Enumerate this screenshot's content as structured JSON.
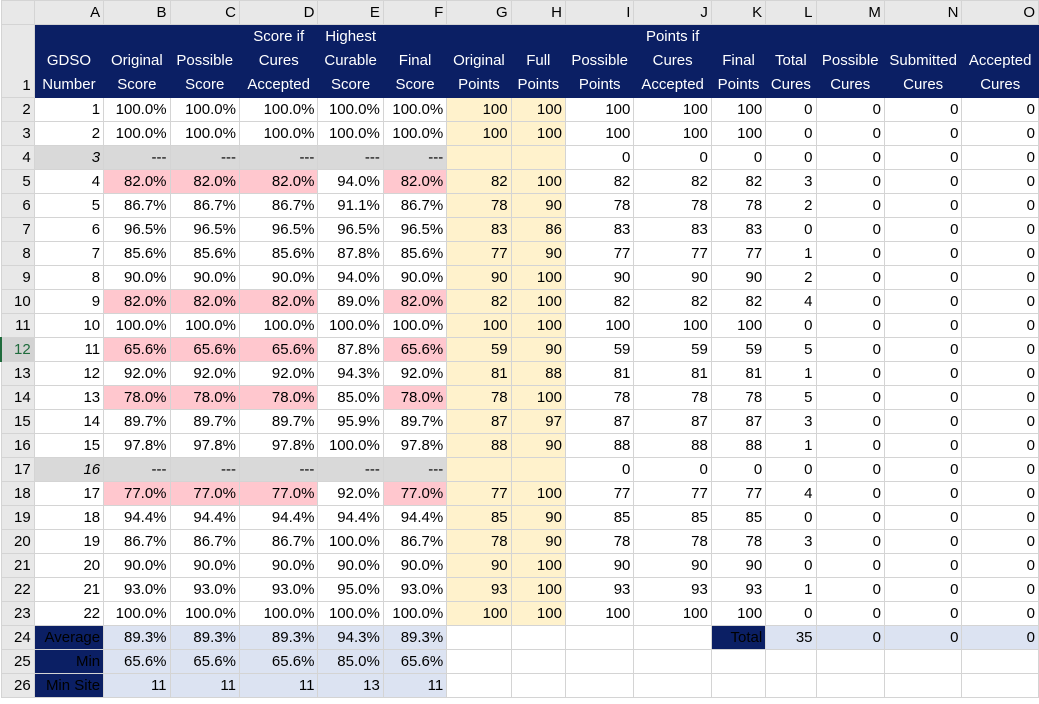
{
  "columns": [
    "A",
    "B",
    "C",
    "D",
    "E",
    "F",
    "G",
    "H",
    "I",
    "J",
    "K",
    "L",
    "M",
    "N",
    "O"
  ],
  "header_row_number": "1",
  "headers": [
    [
      "GDSO",
      "Number"
    ],
    [
      "Original",
      "Score"
    ],
    [
      "Possible",
      "Score"
    ],
    [
      "Score if",
      "Cures",
      "Accepted"
    ],
    [
      "Highest",
      "Curable",
      "Score"
    ],
    [
      "Final",
      "Score"
    ],
    [
      "Original",
      "Points"
    ],
    [
      "Full",
      "Points"
    ],
    [
      "Possible",
      "Points"
    ],
    [
      "Points if",
      "Cures",
      "Accepted"
    ],
    [
      "Final",
      "Points"
    ],
    [
      "Total",
      "Cures"
    ],
    [
      "Possible",
      "Cures"
    ],
    [
      "Submitted",
      "Cures"
    ],
    [
      "Accepted",
      "Cures"
    ]
  ],
  "rows": [
    {
      "n": "2",
      "id": "1",
      "orig": "100.0%",
      "poss": "100.0%",
      "ifc": "100.0%",
      "high": "100.0%",
      "final": "100.0%",
      "op": "100",
      "fp": "100",
      "pp": "100",
      "pic": "100",
      "finp": "100",
      "tc": "0",
      "pc": "0",
      "sc": "0",
      "ac": "0"
    },
    {
      "n": "3",
      "id": "2",
      "orig": "100.0%",
      "poss": "100.0%",
      "ifc": "100.0%",
      "high": "100.0%",
      "final": "100.0%",
      "op": "100",
      "fp": "100",
      "pp": "100",
      "pic": "100",
      "finp": "100",
      "tc": "0",
      "pc": "0",
      "sc": "0",
      "ac": "0"
    },
    {
      "n": "4",
      "id": "3",
      "skip": true,
      "orig": "---",
      "poss": "---",
      "ifc": "---",
      "high": "---",
      "final": "---",
      "op": "",
      "fp": "",
      "pp": "0",
      "pic": "0",
      "finp": "0",
      "tc": "0",
      "pc": "0",
      "sc": "0",
      "ac": "0"
    },
    {
      "n": "5",
      "id": "4",
      "red": true,
      "orig": "82.0%",
      "poss": "82.0%",
      "ifc": "82.0%",
      "high": "94.0%",
      "final": "82.0%",
      "op": "82",
      "fp": "100",
      "pp": "82",
      "pic": "82",
      "finp": "82",
      "tc": "3",
      "pc": "0",
      "sc": "0",
      "ac": "0"
    },
    {
      "n": "6",
      "id": "5",
      "orig": "86.7%",
      "poss": "86.7%",
      "ifc": "86.7%",
      "high": "91.1%",
      "final": "86.7%",
      "op": "78",
      "fp": "90",
      "pp": "78",
      "pic": "78",
      "finp": "78",
      "tc": "2",
      "pc": "0",
      "sc": "0",
      "ac": "0"
    },
    {
      "n": "7",
      "id": "6",
      "orig": "96.5%",
      "poss": "96.5%",
      "ifc": "96.5%",
      "high": "96.5%",
      "final": "96.5%",
      "op": "83",
      "fp": "86",
      "pp": "83",
      "pic": "83",
      "finp": "83",
      "tc": "0",
      "pc": "0",
      "sc": "0",
      "ac": "0"
    },
    {
      "n": "8",
      "id": "7",
      "orig": "85.6%",
      "poss": "85.6%",
      "ifc": "85.6%",
      "high": "87.8%",
      "final": "85.6%",
      "op": "77",
      "fp": "90",
      "pp": "77",
      "pic": "77",
      "finp": "77",
      "tc": "1",
      "pc": "0",
      "sc": "0",
      "ac": "0"
    },
    {
      "n": "9",
      "id": "8",
      "orig": "90.0%",
      "poss": "90.0%",
      "ifc": "90.0%",
      "high": "94.0%",
      "final": "90.0%",
      "op": "90",
      "fp": "100",
      "pp": "90",
      "pic": "90",
      "finp": "90",
      "tc": "2",
      "pc": "0",
      "sc": "0",
      "ac": "0"
    },
    {
      "n": "10",
      "id": "9",
      "red": true,
      "orig": "82.0%",
      "poss": "82.0%",
      "ifc": "82.0%",
      "high": "89.0%",
      "final": "82.0%",
      "op": "82",
      "fp": "100",
      "pp": "82",
      "pic": "82",
      "finp": "82",
      "tc": "4",
      "pc": "0",
      "sc": "0",
      "ac": "0"
    },
    {
      "n": "11",
      "id": "10",
      "orig": "100.0%",
      "poss": "100.0%",
      "ifc": "100.0%",
      "high": "100.0%",
      "final": "100.0%",
      "op": "100",
      "fp": "100",
      "pp": "100",
      "pic": "100",
      "finp": "100",
      "tc": "0",
      "pc": "0",
      "sc": "0",
      "ac": "0"
    },
    {
      "n": "12",
      "id": "11",
      "red": true,
      "sel": true,
      "orig": "65.6%",
      "poss": "65.6%",
      "ifc": "65.6%",
      "high": "87.8%",
      "final": "65.6%",
      "op": "59",
      "fp": "90",
      "pp": "59",
      "pic": "59",
      "finp": "59",
      "tc": "5",
      "pc": "0",
      "sc": "0",
      "ac": "0"
    },
    {
      "n": "13",
      "id": "12",
      "orig": "92.0%",
      "poss": "92.0%",
      "ifc": "92.0%",
      "high": "94.3%",
      "final": "92.0%",
      "op": "81",
      "fp": "88",
      "pp": "81",
      "pic": "81",
      "finp": "81",
      "tc": "1",
      "pc": "0",
      "sc": "0",
      "ac": "0"
    },
    {
      "n": "14",
      "id": "13",
      "red": true,
      "orig": "78.0%",
      "poss": "78.0%",
      "ifc": "78.0%",
      "high": "85.0%",
      "final": "78.0%",
      "op": "78",
      "fp": "100",
      "pp": "78",
      "pic": "78",
      "finp": "78",
      "tc": "5",
      "pc": "0",
      "sc": "0",
      "ac": "0"
    },
    {
      "n": "15",
      "id": "14",
      "orig": "89.7%",
      "poss": "89.7%",
      "ifc": "89.7%",
      "high": "95.9%",
      "final": "89.7%",
      "op": "87",
      "fp": "97",
      "pp": "87",
      "pic": "87",
      "finp": "87",
      "tc": "3",
      "pc": "0",
      "sc": "0",
      "ac": "0"
    },
    {
      "n": "16",
      "id": "15",
      "orig": "97.8%",
      "poss": "97.8%",
      "ifc": "97.8%",
      "high": "100.0%",
      "final": "97.8%",
      "op": "88",
      "fp": "90",
      "pp": "88",
      "pic": "88",
      "finp": "88",
      "tc": "1",
      "pc": "0",
      "sc": "0",
      "ac": "0"
    },
    {
      "n": "17",
      "id": "16",
      "skip": true,
      "orig": "---",
      "poss": "---",
      "ifc": "---",
      "high": "---",
      "final": "---",
      "op": "",
      "fp": "",
      "pp": "0",
      "pic": "0",
      "finp": "0",
      "tc": "0",
      "pc": "0",
      "sc": "0",
      "ac": "0"
    },
    {
      "n": "18",
      "id": "17",
      "red": true,
      "orig": "77.0%",
      "poss": "77.0%",
      "ifc": "77.0%",
      "high": "92.0%",
      "final": "77.0%",
      "op": "77",
      "fp": "100",
      "pp": "77",
      "pic": "77",
      "finp": "77",
      "tc": "4",
      "pc": "0",
      "sc": "0",
      "ac": "0"
    },
    {
      "n": "19",
      "id": "18",
      "orig": "94.4%",
      "poss": "94.4%",
      "ifc": "94.4%",
      "high": "94.4%",
      "final": "94.4%",
      "op": "85",
      "fp": "90",
      "pp": "85",
      "pic": "85",
      "finp": "85",
      "tc": "0",
      "pc": "0",
      "sc": "0",
      "ac": "0"
    },
    {
      "n": "20",
      "id": "19",
      "orig": "86.7%",
      "poss": "86.7%",
      "ifc": "86.7%",
      "high": "100.0%",
      "final": "86.7%",
      "op": "78",
      "fp": "90",
      "pp": "78",
      "pic": "78",
      "finp": "78",
      "tc": "3",
      "pc": "0",
      "sc": "0",
      "ac": "0"
    },
    {
      "n": "21",
      "id": "20",
      "orig": "90.0%",
      "poss": "90.0%",
      "ifc": "90.0%",
      "high": "90.0%",
      "final": "90.0%",
      "op": "90",
      "fp": "100",
      "pp": "90",
      "pic": "90",
      "finp": "90",
      "tc": "0",
      "pc": "0",
      "sc": "0",
      "ac": "0"
    },
    {
      "n": "22",
      "id": "21",
      "orig": "93.0%",
      "poss": "93.0%",
      "ifc": "93.0%",
      "high": "95.0%",
      "final": "93.0%",
      "op": "93",
      "fp": "100",
      "pp": "93",
      "pic": "93",
      "finp": "93",
      "tc": "1",
      "pc": "0",
      "sc": "0",
      "ac": "0"
    },
    {
      "n": "23",
      "id": "22",
      "orig": "100.0%",
      "poss": "100.0%",
      "ifc": "100.0%",
      "high": "100.0%",
      "final": "100.0%",
      "op": "100",
      "fp": "100",
      "pp": "100",
      "pic": "100",
      "finp": "100",
      "tc": "0",
      "pc": "0",
      "sc": "0",
      "ac": "0"
    }
  ],
  "summary": {
    "average": {
      "n": "24",
      "label": "Average",
      "orig": "89.3%",
      "poss": "89.3%",
      "ifc": "89.3%",
      "high": "94.3%",
      "final": "89.3%"
    },
    "min": {
      "n": "25",
      "label": "Min",
      "orig": "65.6%",
      "poss": "65.6%",
      "ifc": "65.6%",
      "high": "85.0%",
      "final": "65.6%"
    },
    "min_site": {
      "n": "26",
      "label": "Min Site",
      "orig": "11",
      "poss": "11",
      "ifc": "11",
      "high": "13",
      "final": "11"
    },
    "total": {
      "label": "Total",
      "tc": "35",
      "pc": "0",
      "sc": "0",
      "ac": "0"
    }
  },
  "colors": {
    "header_navy": "#0b1f64",
    "red_fill": "#ffc7ce",
    "red_text": "#9c0006",
    "yellow_fill": "#fff2cc",
    "gray_fill": "#d9d9d9",
    "summary_fill": "#dce3f2"
  }
}
